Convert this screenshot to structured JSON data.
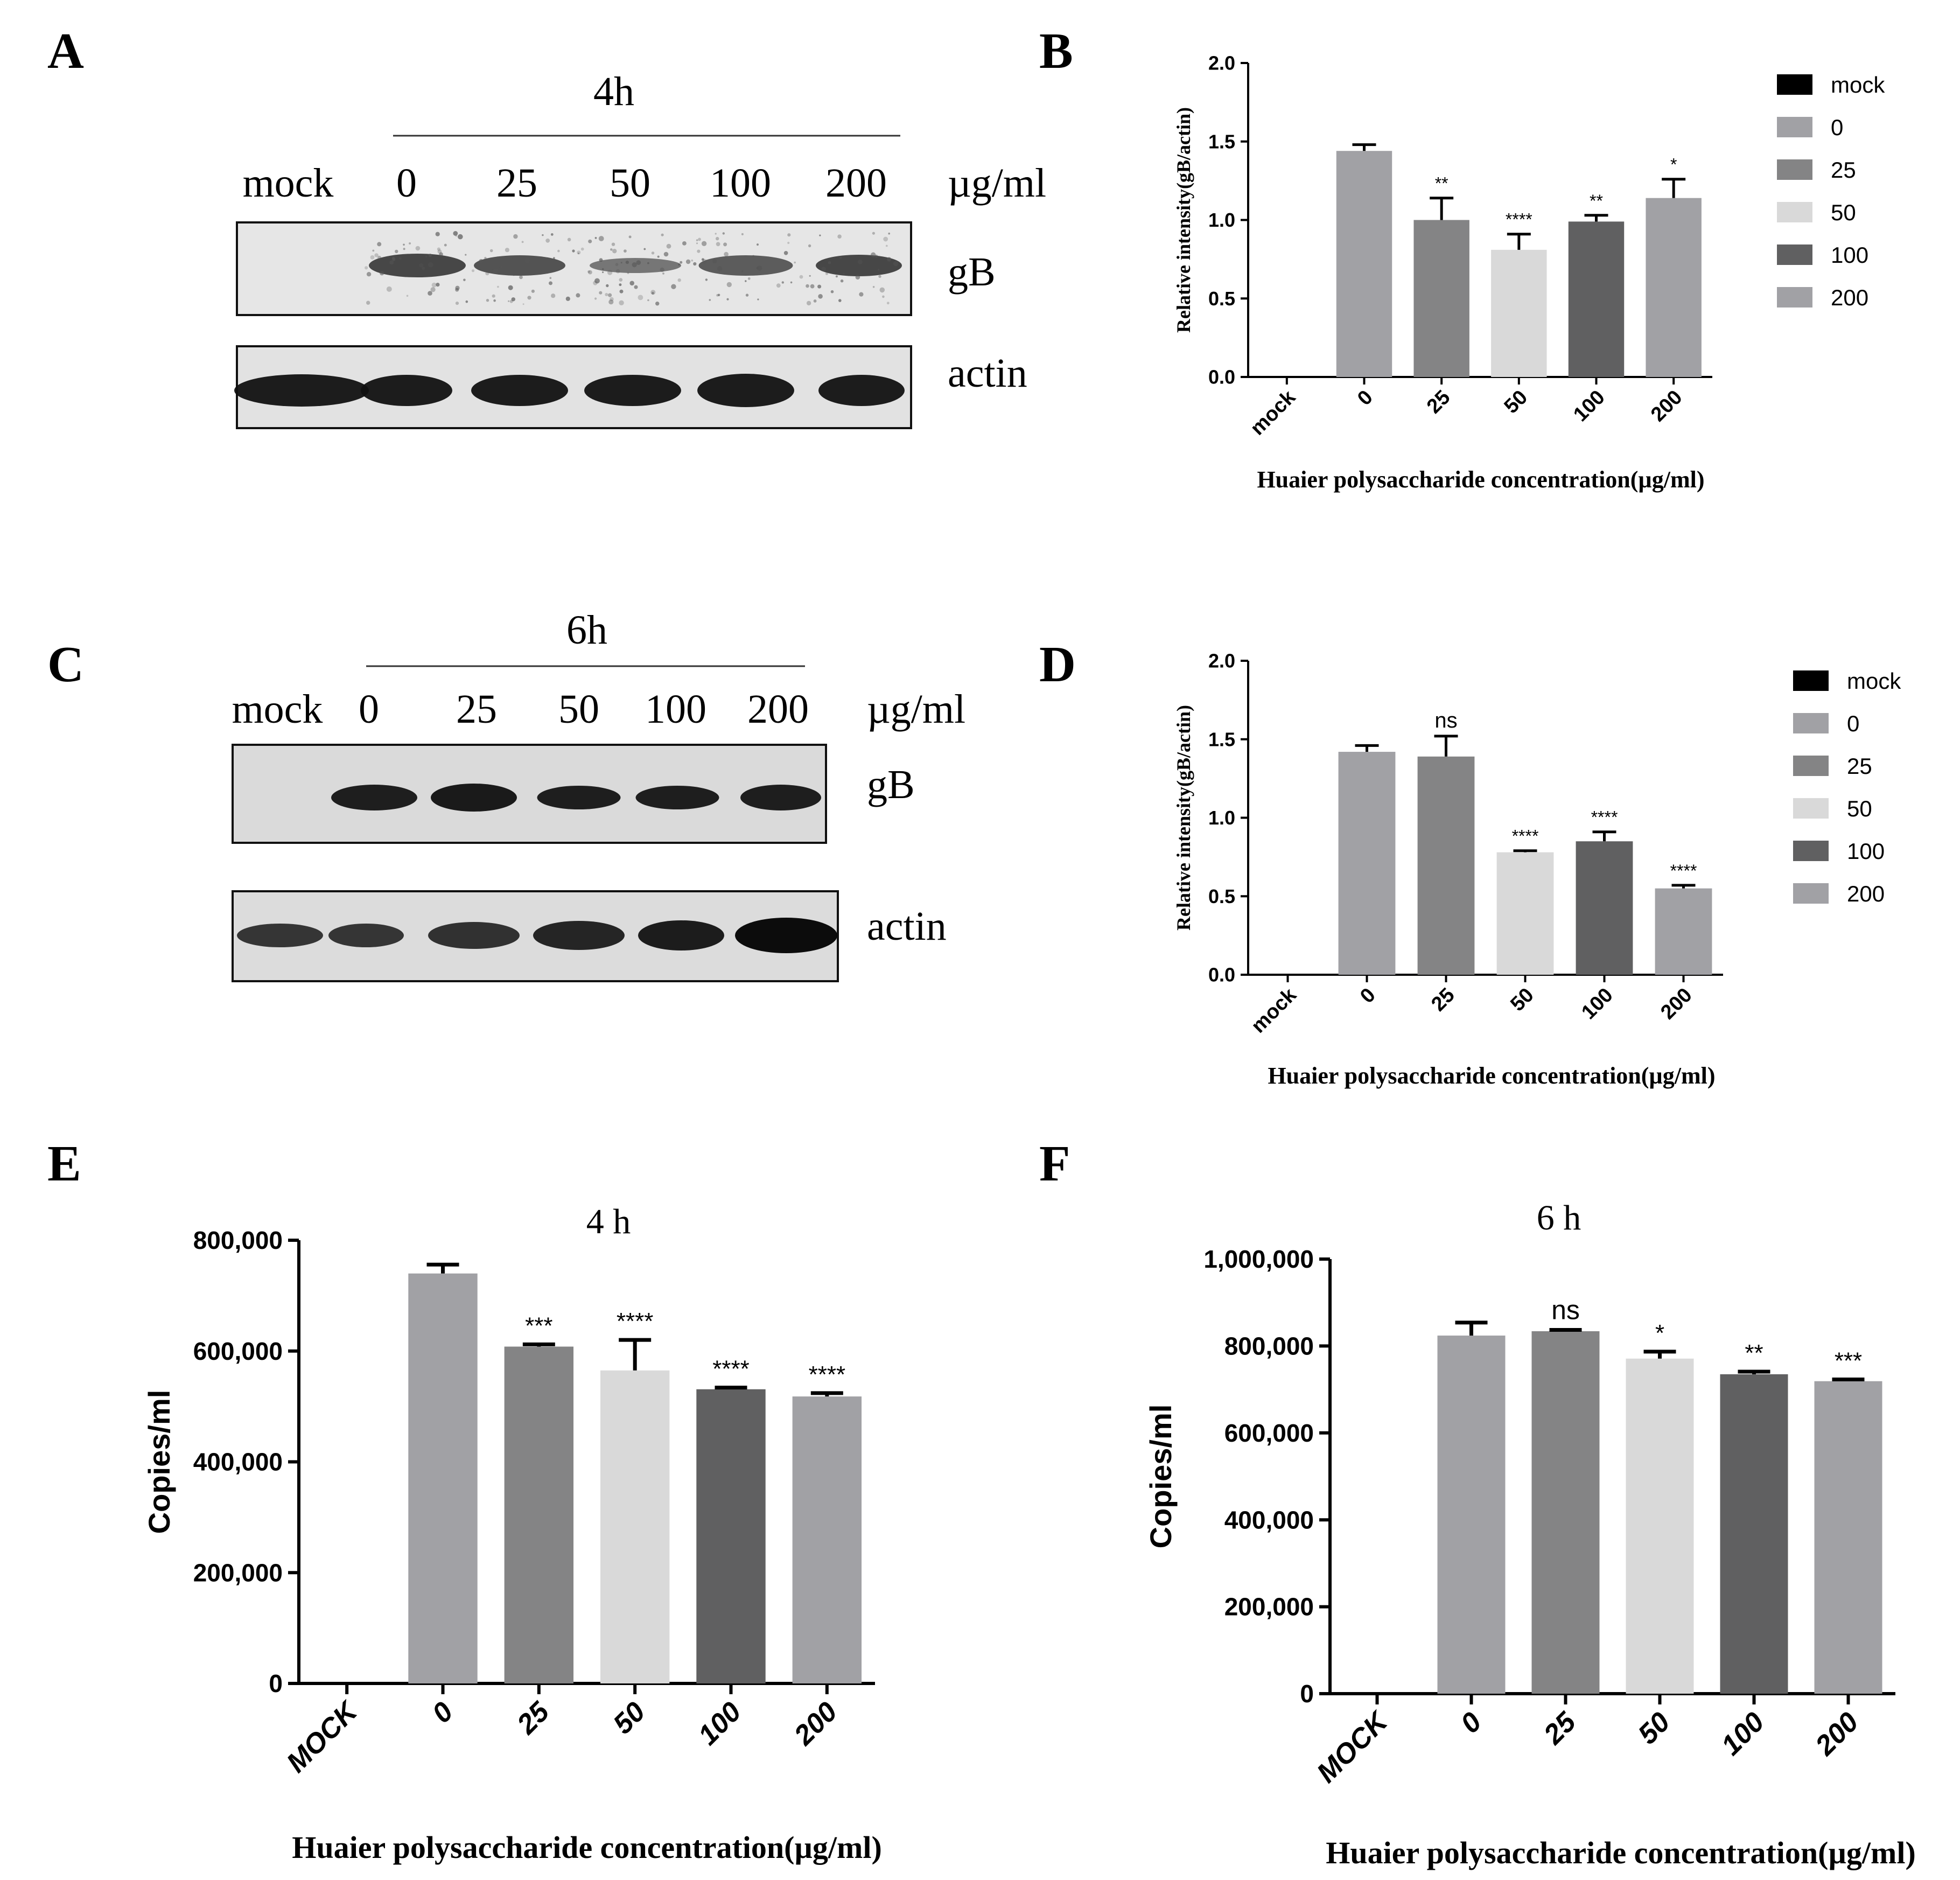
{
  "panels": {
    "A": {
      "letter": "A",
      "time_label": "4h",
      "lane_labels": [
        "mock",
        "0",
        "25",
        "50",
        "100",
        "200"
      ],
      "unit": "µg/ml",
      "rows": [
        "gB",
        "actin"
      ]
    },
    "C": {
      "letter": "C",
      "time_label": "6h",
      "lane_labels": [
        "mock",
        "0",
        "25",
        "50",
        "100",
        "200"
      ],
      "unit": "µg/ml",
      "rows": [
        "gB",
        "actin"
      ]
    }
  },
  "legend": {
    "entries": [
      "mock",
      "0",
      "25",
      "50",
      "100",
      "200"
    ],
    "colors": [
      "#000000",
      "#a1a1a5",
      "#848485",
      "#d9d9d9",
      "#606061",
      "#a1a1a5"
    ]
  },
  "chart_data": [
    {
      "panel": "B",
      "type": "bar",
      "title": "",
      "xlabel": "Huaier polysaccharide concentration(µg/ml)",
      "ylabel": "Relative intensity(gB/actin)",
      "categories": [
        "mock",
        "0",
        "25",
        "50",
        "100",
        "200"
      ],
      "values": [
        0,
        1.44,
        1.0,
        0.81,
        0.99,
        1.14
      ],
      "errors": [
        0,
        0.04,
        0.14,
        0.1,
        0.04,
        0.12
      ],
      "significance": [
        "",
        "",
        "**",
        "****",
        "**",
        "*"
      ],
      "ylim": [
        0,
        2.0
      ],
      "yticks": [
        "0.0",
        "0.5",
        "1.0",
        "1.5",
        "2.0"
      ],
      "legend": "right"
    },
    {
      "panel": "D",
      "type": "bar",
      "title": "",
      "xlabel": "Huaier polysaccharide concentration(µg/ml)",
      "ylabel": "Relative intensity(gB/actin)",
      "categories": [
        "mock",
        "0",
        "25",
        "50",
        "100",
        "200"
      ],
      "values": [
        0,
        1.42,
        1.39,
        0.78,
        0.85,
        0.55
      ],
      "errors": [
        0,
        0.04,
        0.13,
        0.01,
        0.06,
        0.02
      ],
      "significance": [
        "",
        "",
        "ns",
        "****",
        "****",
        "****"
      ],
      "ylim": [
        0,
        2.0
      ],
      "yticks": [
        "0.0",
        "0.5",
        "1.0",
        "1.5",
        "2.0"
      ],
      "legend": "right"
    },
    {
      "panel": "E",
      "type": "bar",
      "title": "4 h",
      "xlabel": "Huaier polysaccharide concentration(µg/ml)",
      "ylabel": "Copies/ml",
      "categories": [
        "MOCK",
        "0",
        "25",
        "50",
        "100",
        "200"
      ],
      "values": [
        0,
        740000,
        608000,
        565000,
        531000,
        518000
      ],
      "errors": [
        0,
        16000,
        4000,
        55000,
        3000,
        6000
      ],
      "significance": [
        "",
        "",
        "***",
        "****",
        "****",
        "****"
      ],
      "ylim": [
        0,
        800000
      ],
      "yticks": [
        "0",
        "200,000",
        "400,000",
        "600,000",
        "800,000"
      ]
    },
    {
      "panel": "F",
      "type": "bar",
      "title": "6 h",
      "xlabel": "Huaier polysaccharide concentration(µg/ml)",
      "ylabel": "Copies/ml",
      "categories": [
        "MOCK",
        "0",
        "25",
        "50",
        "100",
        "200"
      ],
      "values": [
        0,
        824000,
        834000,
        771000,
        735000,
        719000
      ],
      "errors": [
        0,
        30000,
        3000,
        16000,
        6000,
        4000
      ],
      "significance": [
        "",
        "",
        "ns",
        "*",
        "**",
        "***"
      ],
      "ylim": [
        0,
        1000000
      ],
      "yticks": [
        "0",
        "200,000",
        "400,000",
        "600,000",
        "800,000",
        "1,000,000"
      ]
    }
  ]
}
